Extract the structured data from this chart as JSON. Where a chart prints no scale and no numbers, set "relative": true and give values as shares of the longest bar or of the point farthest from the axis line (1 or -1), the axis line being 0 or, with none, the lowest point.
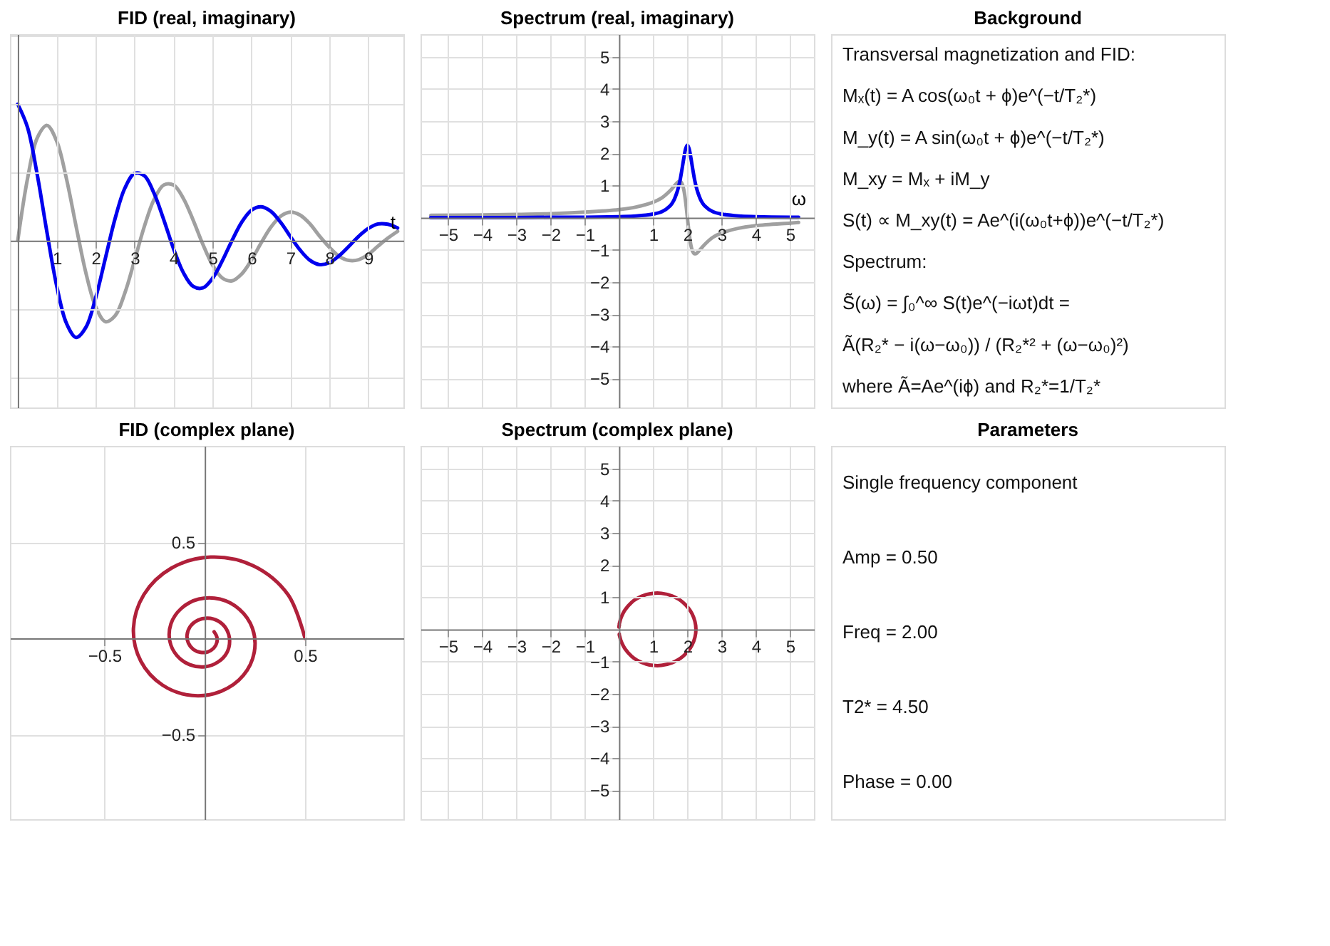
{
  "chart_data": [
    {
      "type": "line",
      "title": "FID (real, imaginary)",
      "xlabel": "t",
      "relative": true,
      "tick_labels": "x",
      "grid": true,
      "xlim": [
        -0.2,
        9.9
      ],
      "xticks": [
        1,
        2,
        3,
        4,
        5,
        6,
        7,
        8,
        9
      ],
      "x": [
        0,
        0.25,
        0.5,
        0.75,
        1,
        1.25,
        1.5,
        1.75,
        2,
        2.25,
        2.5,
        2.75,
        3,
        3.25,
        3.5,
        3.75,
        4,
        4.25,
        4.5,
        4.75,
        5,
        5.25,
        5.5,
        5.75,
        6,
        6.25,
        6.5,
        6.75,
        7,
        7.25,
        7.5,
        7.75,
        8,
        8.25,
        8.5,
        8.75,
        9,
        9.25,
        9.5,
        9.75
      ],
      "series": [
        {
          "color": "#a0a0a0",
          "values": [
            0,
            0.453,
            0.753,
            0.844,
            0.728,
            0.453,
            0.101,
            -0.238,
            -0.485,
            -0.594,
            -0.55,
            -0.383,
            -0.143,
            0.104,
            0.302,
            0.408,
            0.407,
            0.31,
            0.152,
            -0.026,
            -0.179,
            -0.274,
            -0.295,
            -0.244,
            -0.142,
            -0.016,
            0.099,
            0.179,
            0.209,
            0.187,
            0.123,
            0.032,
            -0.049,
            -0.115,
            -0.145,
            -0.14,
            -0.101,
            -0.04,
            0.018,
            0.068
          ]
        },
        {
          "color": "#0000ee",
          "values": [
            1,
            0.83,
            0.483,
            0.06,
            -0.333,
            -0.606,
            -0.71,
            -0.635,
            -0.419,
            -0.128,
            0.163,
            0.385,
            0.493,
            0.475,
            0.346,
            0.151,
            -0.06,
            -0.234,
            -0.335,
            -0.347,
            -0.276,
            -0.148,
            0.001,
            0.135,
            0.223,
            0.248,
            0.214,
            0.133,
            0.029,
            -0.07,
            -0.144,
            -0.176,
            -0.162,
            -0.111,
            -0.042,
            0.031,
            0.089,
            0.122,
            0.12,
            0.093
          ]
        }
      ]
    },
    {
      "type": "line",
      "title": "Spectrum (real, imaginary)",
      "xlabel": "ω",
      "grid": true,
      "xlim": [
        -5.8,
        5.7
      ],
      "ylim": [
        -5.9,
        5.7
      ],
      "xticks": [
        -5,
        -4,
        -3,
        -2,
        -1,
        1,
        2,
        3,
        4,
        5
      ],
      "yticks": [
        -5,
        -4,
        -3,
        -2,
        -1,
        1,
        2,
        3,
        4,
        5
      ],
      "x": [
        -5.5,
        -4,
        -3,
        -2,
        -1,
        0,
        0.5,
        1,
        1.25,
        1.5,
        1.6,
        1.7,
        1.75,
        1.8,
        1.85,
        1.9,
        1.95,
        2,
        2.05,
        2.1,
        2.15,
        2.2,
        2.25,
        2.3,
        2.4,
        2.5,
        2.75,
        3,
        3.5,
        4,
        5,
        5.25
      ],
      "series": [
        {
          "color": "#a0a0a0",
          "values": [
            0.07,
            0.08,
            0.1,
            0.12,
            0.17,
            0.25,
            0.33,
            0.48,
            0.61,
            0.84,
            0.96,
            1.08,
            1.12,
            1.12,
            1.04,
            0.84,
            0.48,
            0,
            -0.48,
            -0.84,
            -1.04,
            -1.12,
            -1.12,
            -1.08,
            -0.96,
            -0.84,
            -0.61,
            -0.48,
            -0.33,
            -0.25,
            -0.17,
            -0.15
          ]
        },
        {
          "color": "#0000ee",
          "values": [
            0,
            0,
            0,
            0.01,
            0.01,
            0.03,
            0.05,
            0.11,
            0.18,
            0.37,
            0.53,
            0.8,
            0.99,
            1.24,
            1.55,
            1.87,
            2.14,
            2.25,
            2.14,
            1.87,
            1.55,
            1.24,
            0.99,
            0.8,
            0.53,
            0.37,
            0.18,
            0.11,
            0.05,
            0.03,
            0.01,
            0.01
          ]
        }
      ]
    },
    {
      "type": "other",
      "title": "Background",
      "annotations": [
        "Transversal magnetization and FID:",
        "Mₓ(t) = A cos(ω₀t + ϕ)e^(−t/T₂*)",
        "M_y(t) = A sin(ω₀t + ϕ)e^(−t/T₂*)",
        "M_xy = Mₓ + iM_y",
        "S(t) ∝ M_xy(t) = Ae^(i(ω₀t+ϕ))e^(−t/T₂*)",
        "Spectrum:",
        "S̃(ω) = ∫₀^∞ S(t)e^(−iωt)dt =",
        "Ã(R₂* − i(ω−ω₀)) / (R₂*² + (ω−ω₀)²)",
        "where Ã=Ae^(iϕ) and R₂*=1/T₂*"
      ]
    },
    {
      "type": "line",
      "title": "FID (complex plane)",
      "grid": true,
      "xlim": [
        -0.97,
        0.99
      ],
      "ylim": [
        -0.94,
        1.0
      ],
      "xticks": [
        -0.5,
        0.5
      ],
      "yticks": [
        -0.5,
        0.5
      ],
      "series": [
        {
          "color": "#b0203a",
          "x": [
            0.5,
            0.415,
            0.242,
            0.03,
            -0.167,
            -0.303,
            -0.355,
            -0.318,
            -0.21,
            -0.064,
            0.082,
            0.193,
            0.247,
            0.238,
            0.173,
            0.076,
            -0.03,
            -0.117,
            -0.168,
            -0.174,
            -0.138,
            -0.074,
            0.001,
            0.068,
            0.112,
            0.124,
            0.107,
            0.067,
            0.015,
            -0.035,
            -0.072,
            -0.088,
            -0.081,
            -0.056,
            -0.021,
            0.016,
            0.045,
            0.061,
            0.06,
            0.047
          ],
          "values": [
            0,
            0.227,
            0.377,
            0.422,
            0.364,
            0.227,
            0.051,
            -0.119,
            -0.243,
            -0.297,
            -0.275,
            -0.192,
            -0.072,
            0.052,
            0.151,
            0.204,
            0.204,
            0.155,
            0.076,
            -0.013,
            -0.09,
            -0.137,
            -0.148,
            -0.122,
            -0.071,
            -0.008,
            0.05,
            0.09,
            0.105,
            0.094,
            0.062,
            0.016,
            -0.025,
            -0.058,
            -0.073,
            -0.07,
            -0.051,
            -0.02,
            0.009,
            0.034
          ]
        }
      ]
    },
    {
      "type": "line",
      "title": "Spectrum (complex plane)",
      "grid": true,
      "xlim": [
        -5.8,
        5.7
      ],
      "ylim": [
        -5.9,
        5.7
      ],
      "xticks": [
        -5,
        -4,
        -3,
        -2,
        -1,
        1,
        2,
        3,
        4,
        5
      ],
      "yticks": [
        -5,
        -4,
        -3,
        -2,
        -1,
        1,
        2,
        3,
        4,
        5
      ],
      "series": [
        {
          "color": "#b0203a",
          "x": [
            0,
            0,
            0,
            0.01,
            0.01,
            0.03,
            0.05,
            0.11,
            0.18,
            0.37,
            0.53,
            0.8,
            0.99,
            1.24,
            1.55,
            1.87,
            2.14,
            2.25,
            2.14,
            1.87,
            1.55,
            1.24,
            0.99,
            0.8,
            0.53,
            0.37,
            0.18,
            0.11,
            0.05,
            0.03,
            0.01,
            0.01
          ],
          "values": [
            0.07,
            0.08,
            0.1,
            0.12,
            0.17,
            0.25,
            0.33,
            0.48,
            0.61,
            0.84,
            0.96,
            1.08,
            1.12,
            1.12,
            1.04,
            0.84,
            0.48,
            0,
            -0.48,
            -0.84,
            -1.04,
            -1.12,
            -1.12,
            -1.08,
            -0.96,
            -0.84,
            -0.61,
            -0.48,
            -0.33,
            -0.25,
            -0.17,
            -0.15
          ]
        }
      ]
    },
    {
      "type": "other",
      "title": "Parameters",
      "annotations": [
        "Single frequency component",
        "Amp = 0.50",
        "Freq = 2.00",
        "T2* = 4.50",
        "Phase = 0.00"
      ]
    }
  ]
}
